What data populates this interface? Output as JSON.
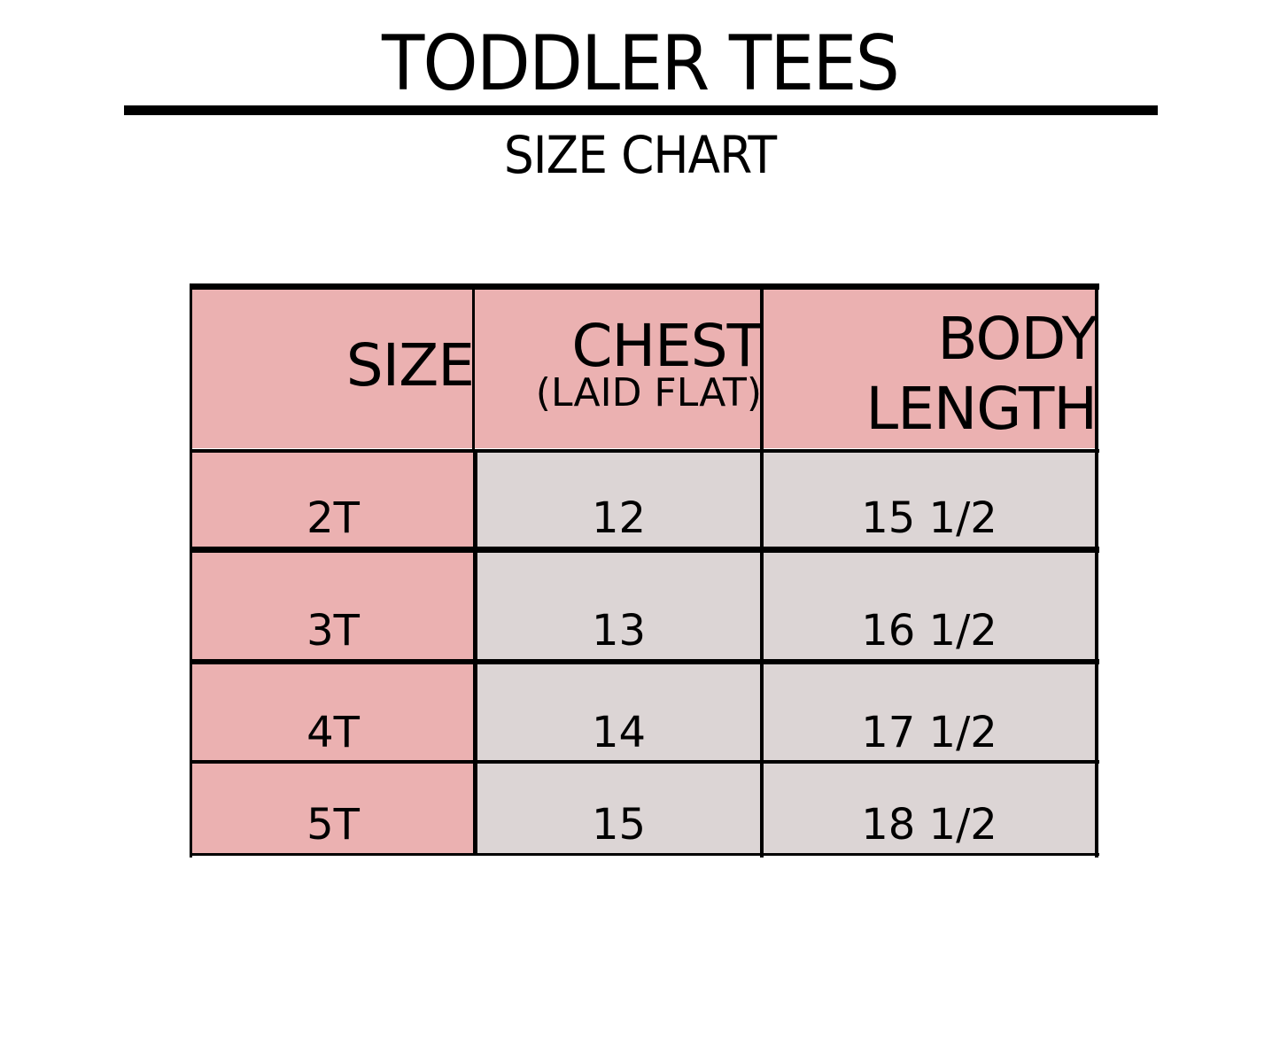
{
  "title": "TODDLER TEES",
  "subtitle": "SIZE CHART",
  "colors": {
    "header": "#ebb1b1",
    "size_column": "#ebb1b1",
    "value_cells": "#dcd5d5",
    "lines": "#000000"
  },
  "table": {
    "headers": {
      "size": "SIZE",
      "chest": "CHEST",
      "chest_note": "(LAID FLAT)",
      "body_line1": "BODY",
      "body_line2": "LENGTH"
    },
    "rows": [
      {
        "size": "2T",
        "chest": "12",
        "body_length": "15 1/2"
      },
      {
        "size": "3T",
        "chest": "13",
        "body_length": "16 1/2"
      },
      {
        "size": "4T",
        "chest": "14",
        "body_length": "17 1/2"
      },
      {
        "size": "5T",
        "chest": "15",
        "body_length": "18 1/2"
      }
    ]
  }
}
